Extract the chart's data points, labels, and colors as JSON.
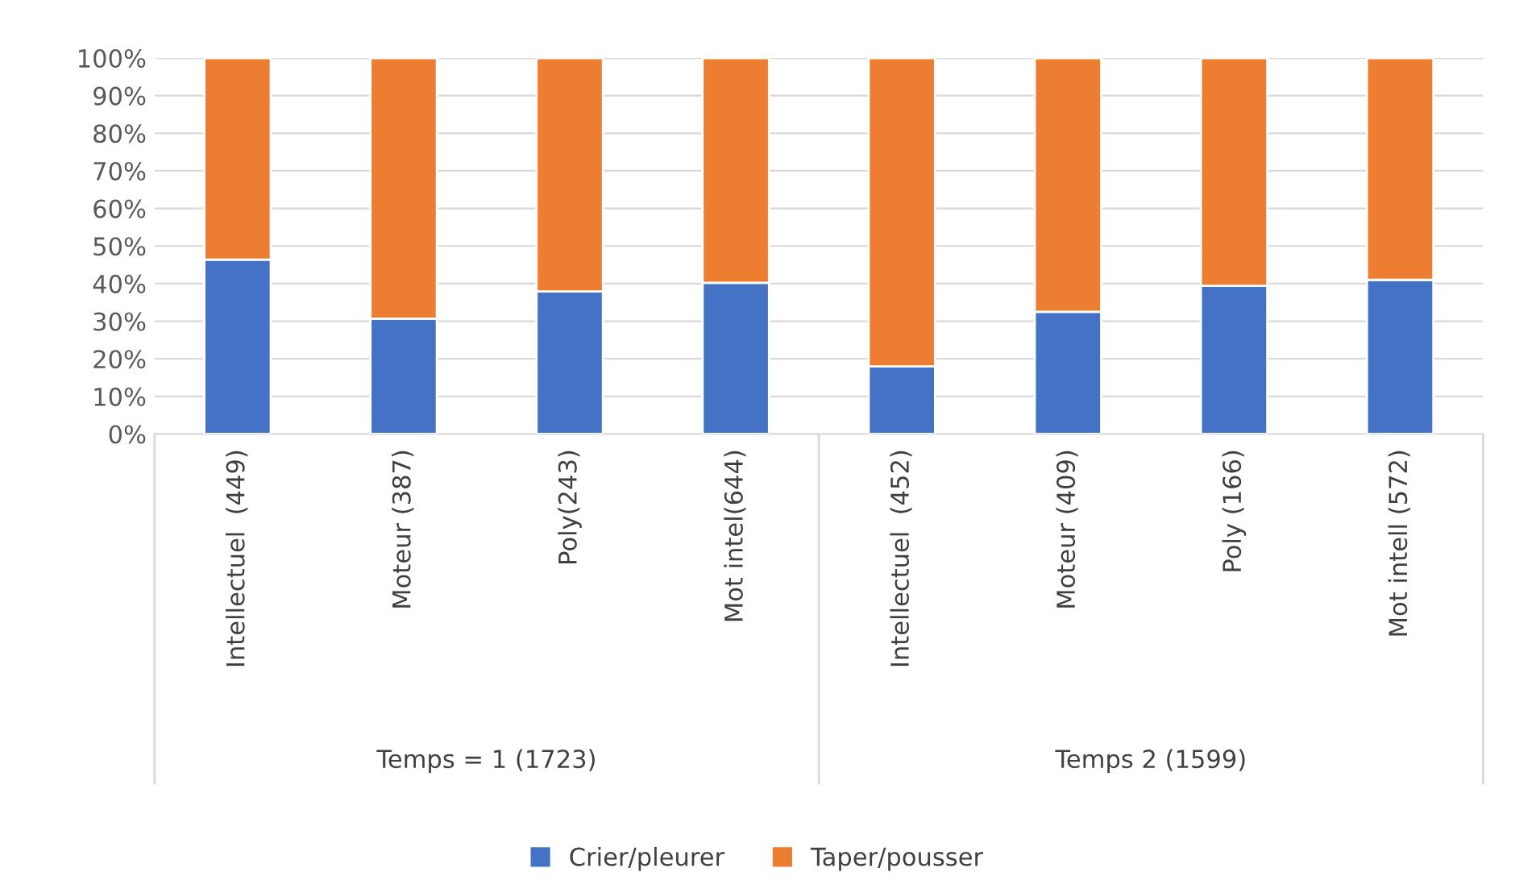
{
  "chart_data": {
    "type": "bar",
    "stacked": true,
    "categories": [
      "Intellectuel  (449)",
      "Moteur (387)",
      "Poly(243)",
      "Mot intel(644)",
      "Intellectuel  (452)",
      "Moteur (409)",
      "Poly (166)",
      "Mot intell (572)"
    ],
    "series": [
      {
        "name": "Crier/pleurer",
        "color": "#4472c4",
        "values": [
          46.4,
          30.7,
          37.9,
          40.2,
          18.0,
          32.5,
          39.4,
          41.0
        ]
      },
      {
        "name": "Taper/pousser",
        "color": "#ed7d31",
        "values": [
          53.6,
          69.3,
          62.1,
          59.8,
          82.0,
          67.5,
          60.6,
          59.0
        ]
      }
    ],
    "ylim": [
      0,
      100
    ],
    "yticks": [
      {
        "value": 0,
        "label": "0%"
      },
      {
        "value": 10,
        "label": "10%"
      },
      {
        "value": 20,
        "label": "20%"
      },
      {
        "value": 30,
        "label": "30%"
      },
      {
        "value": 40,
        "label": "40%"
      },
      {
        "value": 50,
        "label": "50%"
      },
      {
        "value": 60,
        "label": "60%"
      },
      {
        "value": 70,
        "label": "70%"
      },
      {
        "value": 80,
        "label": "80%"
      },
      {
        "value": 90,
        "label": "90%"
      },
      {
        "value": 100,
        "label": "100%"
      }
    ],
    "grid": "y",
    "legend": "bottom",
    "annotations": [
      "Temps = 1 (1723)",
      "Temps 2 (1599)"
    ]
  }
}
